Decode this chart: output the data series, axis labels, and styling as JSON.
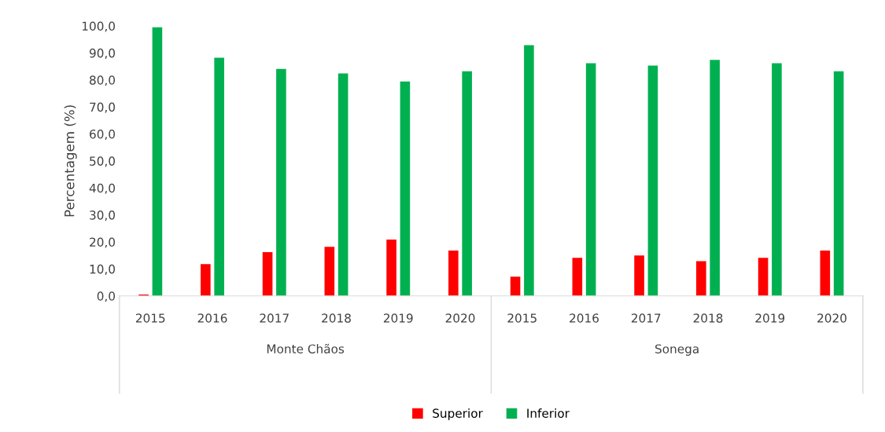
{
  "chart_data": {
    "type": "bar",
    "ylabel": "Percentagem (%)",
    "categories": [
      "2015",
      "2016",
      "2017",
      "2018",
      "2019",
      "2020",
      "2015",
      "2016",
      "2017",
      "2018",
      "2019",
      "2020"
    ],
    "annotations": [
      "Monte Chãos",
      "Sonega"
    ],
    "series": [
      {
        "name": "Superior",
        "color": "#ff0000",
        "values": [
          0.5,
          11.8,
          16.2,
          18.2,
          20.9,
          16.8,
          7.1,
          14.1,
          15.0,
          12.9,
          14.1,
          16.8
        ]
      },
      {
        "name": "Inferior",
        "color": "#00b050",
        "values": [
          99.5,
          88.2,
          84.1,
          82.4,
          79.4,
          83.2,
          92.9,
          86.2,
          85.3,
          87.4,
          86.2,
          83.2
        ]
      }
    ],
    "ylim": [
      0,
      100
    ],
    "yticks": [
      {
        "value": 0,
        "label": "0,0"
      },
      {
        "value": 10,
        "label": "10,0"
      },
      {
        "value": 20,
        "label": "20,0"
      },
      {
        "value": 30,
        "label": "30,0"
      },
      {
        "value": 40,
        "label": "40,0"
      },
      {
        "value": 50,
        "label": "50,0"
      },
      {
        "value": 60,
        "label": "60,0"
      },
      {
        "value": 70,
        "label": "70,0"
      },
      {
        "value": 80,
        "label": "80,0"
      },
      {
        "value": 90,
        "label": "90,0"
      },
      {
        "value": 100,
        "label": "100,0"
      }
    ],
    "grid": false,
    "legend": "bottom"
  }
}
